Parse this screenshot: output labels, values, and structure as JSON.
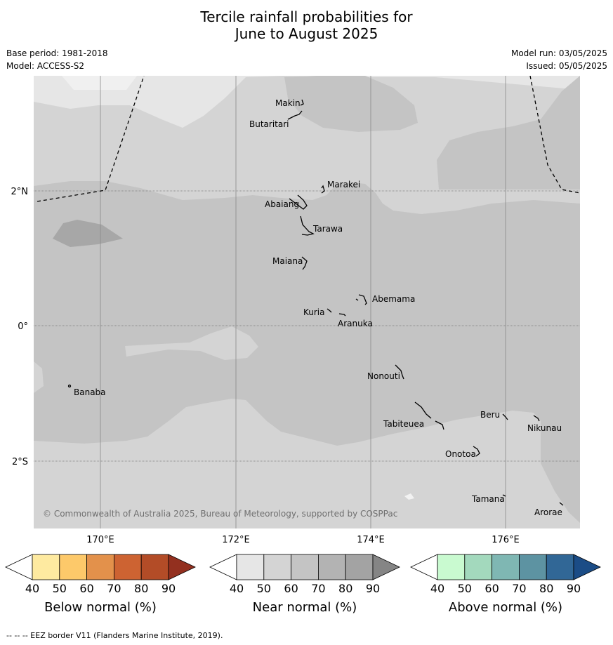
{
  "title": {
    "line1": "Tercile rainfall probabilities for",
    "line2": "June to August 2025"
  },
  "meta": {
    "base_period": "Base period: 1981-2018",
    "model": "Model: ACCESS-S2",
    "model_run": "Model run: 03/05/2025",
    "issued": "Issued: 05/05/2025"
  },
  "map": {
    "latitude_labels": [
      "2°N",
      "0°",
      "2°S"
    ],
    "longitude_labels": [
      "170°E",
      "172°E",
      "174°E",
      "176°E"
    ],
    "islands": [
      "Makin",
      "Butaritari",
      "Marakei",
      "Abaiang",
      "Tarawa",
      "Maiana",
      "Abemama",
      "Kuria",
      "Aranuka",
      "Banaba",
      "Nonouti",
      "Beru",
      "Tabiteuea",
      "Nikunau",
      "Onotoa",
      "Tamana",
      "Arorae"
    ],
    "copyright": "© Commonwealth of Australia 2025, Bureau of Meteorology, supported by COSPPac"
  },
  "colorbars": [
    {
      "title": "Below normal (%)",
      "ticks": [
        "40",
        "50",
        "60",
        "70",
        "80",
        "90"
      ],
      "colors": [
        "#ffffff",
        "#feeaa0",
        "#fdc96a",
        "#e3914b",
        "#cd6332",
        "#b34c27",
        "#93301f"
      ]
    },
    {
      "title": "Near normal (%)",
      "ticks": [
        "40",
        "50",
        "60",
        "70",
        "80",
        "90"
      ],
      "colors": [
        "#ffffff",
        "#e6e6e6",
        "#d4d4d4",
        "#c4c4c4",
        "#b3b3b3",
        "#a3a3a3",
        "#858585"
      ]
    },
    {
      "title": "Above normal (%)",
      "ticks": [
        "40",
        "50",
        "60",
        "70",
        "80",
        "90"
      ],
      "colors": [
        "#ffffff",
        "#c9fad0",
        "#a3d9bd",
        "#7fb7b3",
        "#5d93a2",
        "#316796",
        "#1b4c86"
      ]
    }
  ],
  "footnote": "--  --  -- EEZ border V11 (Flanders Marine Institute, 2019)."
}
